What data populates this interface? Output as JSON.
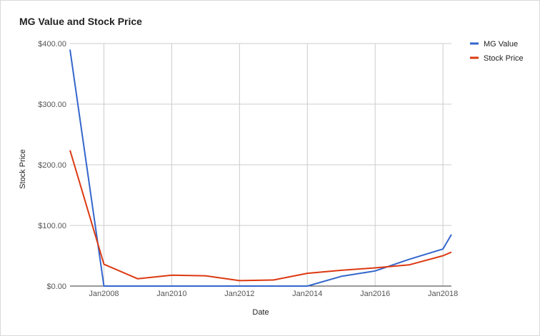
{
  "chart_data": {
    "type": "line",
    "title": "MG Value and Stock Price",
    "xlabel": "Date",
    "ylabel": "Stock Price",
    "x": [
      "2007-01",
      "2008-01",
      "2009-01",
      "2010-01",
      "2011-01",
      "2012-01",
      "2013-01",
      "2014-01",
      "2015-01",
      "2016-01",
      "2017-01",
      "2018-01",
      "2018-04"
    ],
    "xlim": [
      "2007-01",
      "2018-04"
    ],
    "x_ticks": [
      "2008-01",
      "2010-01",
      "2012-01",
      "2014-01",
      "2016-01",
      "2018-01"
    ],
    "x_tick_labels": [
      "Jan2008",
      "Jan2010",
      "Jan2012",
      "Jan2014",
      "Jan2016",
      "Jan2018"
    ],
    "ylim": [
      0,
      400
    ],
    "y_ticks": [
      0,
      100,
      200,
      300,
      400
    ],
    "y_tick_labels": [
      "$0.00",
      "$100.00",
      "$200.00",
      "$300.00",
      "$400.00"
    ],
    "grid": true,
    "legend_position": "top-right",
    "series": [
      {
        "name": "MG Value",
        "color": "#3366cc",
        "values": [
          390,
          0,
          0,
          0,
          0,
          0,
          0,
          0,
          16,
          25,
          44,
          61,
          85
        ]
      },
      {
        "name": "Stock Price",
        "color": "#dc3912",
        "values": [
          224,
          36,
          12,
          18,
          17,
          9,
          10,
          21,
          26,
          30,
          35,
          50,
          56
        ]
      }
    ]
  }
}
